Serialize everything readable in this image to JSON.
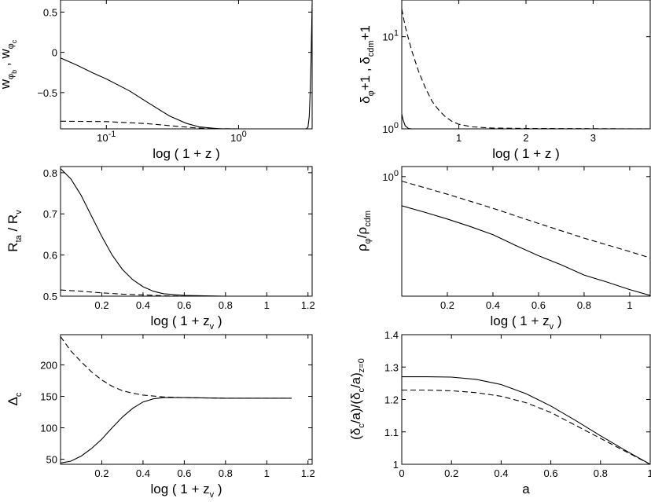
{
  "chart_data": [
    {
      "id": "p1",
      "type": "line",
      "xscale": "log",
      "xlim": [
        0.045,
        3.6
      ],
      "ylim": [
        -0.95,
        0.65
      ],
      "xticks": [
        {
          "v": 0.1,
          "b": "10",
          "e": "-1"
        },
        {
          "v": 1,
          "b": "10",
          "e": "0"
        }
      ],
      "yticks": [
        {
          "v": 0,
          "t": "0"
        },
        {
          "v": 0.5,
          "t": "0.5"
        },
        {
          "v": -0.5,
          "t": "−0.5"
        }
      ],
      "xlabel": "log ( 1 + z )",
      "ylabel": {
        "w1": "w",
        "w1_sub": "φ",
        "w1_subsub": "b",
        "sep": ",",
        "w2": "w",
        "w2_sub": "φ",
        "w2_subsub": "c"
      },
      "series": [
        {
          "style": "solid",
          "points": [
            [
              0.045,
              -0.07
            ],
            [
              0.06,
              -0.16
            ],
            [
              0.08,
              -0.26
            ],
            [
              0.1,
              -0.33
            ],
            [
              0.15,
              -0.48
            ],
            [
              0.2,
              -0.61
            ],
            [
              0.3,
              -0.79
            ],
            [
              0.4,
              -0.88
            ],
            [
              0.5,
              -0.925
            ],
            [
              0.7,
              -0.948
            ],
            [
              1.0,
              -0.95
            ],
            [
              2.0,
              -0.95
            ],
            [
              3.25,
              -0.95
            ],
            [
              3.35,
              -0.93
            ],
            [
              3.42,
              -0.8
            ],
            [
              3.48,
              -0.5
            ],
            [
              3.53,
              -0.1
            ],
            [
              3.57,
              0.3
            ],
            [
              3.6,
              0.6
            ]
          ]
        },
        {
          "style": "dashed",
          "points": [
            [
              0.045,
              -0.855
            ],
            [
              0.1,
              -0.86
            ],
            [
              0.2,
              -0.885
            ],
            [
              0.3,
              -0.91
            ],
            [
              0.45,
              -0.935
            ],
            [
              0.6,
              -0.948
            ],
            [
              1.0,
              -0.95
            ],
            [
              3.6,
              -0.95
            ]
          ]
        }
      ]
    },
    {
      "id": "p2",
      "type": "line",
      "yscale": "log",
      "xlim": [
        0.15,
        3.85
      ],
      "ylim": [
        1,
        25
      ],
      "xticks": [
        {
          "v": 1,
          "t": "1"
        },
        {
          "v": 2,
          "t": "2"
        },
        {
          "v": 3,
          "t": "3"
        }
      ],
      "yticks": [
        {
          "v": 1,
          "b": "10",
          "e": "0"
        },
        {
          "v": 10,
          "b": "10",
          "e": "1"
        }
      ],
      "xlabel": "log ( 1 + z )",
      "ylabel": {
        "a": "δ",
        "a_sub": "φ",
        "b": "+1 , δ",
        "b_sub": "cdm",
        "c": "+1"
      },
      "series": [
        {
          "style": "dashed",
          "points": [
            [
              0.15,
              20
            ],
            [
              0.2,
              13
            ],
            [
              0.3,
              7
            ],
            [
              0.4,
              4.2
            ],
            [
              0.5,
              2.8
            ],
            [
              0.6,
              2.0
            ],
            [
              0.7,
              1.6
            ],
            [
              0.8,
              1.35
            ],
            [
              0.9,
              1.2
            ],
            [
              1.0,
              1.12
            ],
            [
              1.2,
              1.05
            ],
            [
              1.5,
              1.02
            ],
            [
              2.0,
              1.01
            ],
            [
              3.85,
              1.0
            ]
          ]
        },
        {
          "style": "solid",
          "points": [
            [
              0.15,
              1.45
            ],
            [
              0.17,
              1.25
            ],
            [
              0.2,
              1.08
            ],
            [
              0.25,
              1.01
            ],
            [
              0.3,
              1.0
            ],
            [
              3.85,
              1.0
            ]
          ]
        }
      ]
    },
    {
      "id": "p3",
      "type": "line",
      "xlim": [
        0,
        1.22
      ],
      "ylim": [
        0.5,
        0.815
      ],
      "xticks": [
        {
          "v": 0.2,
          "t": "0.2"
        },
        {
          "v": 0.4,
          "t": "0.4"
        },
        {
          "v": 0.6,
          "t": "0.6"
        },
        {
          "v": 0.8,
          "t": "0.8"
        },
        {
          "v": 1,
          "t": "1"
        },
        {
          "v": 1.2,
          "t": "1.2"
        }
      ],
      "yticks": [
        {
          "v": 0.5,
          "t": "0.5"
        },
        {
          "v": 0.6,
          "t": "0.6"
        },
        {
          "v": 0.7,
          "t": "0.7"
        },
        {
          "v": 0.8,
          "t": "0.8"
        }
      ],
      "xlabel": {
        "a": "log ( 1 + z",
        "a_sub": "v",
        "b": ")"
      },
      "ylabel": {
        "a": "R",
        "a_sub": "ta",
        "b": " / R",
        "b_sub": "v"
      },
      "series": [
        {
          "style": "solid",
          "points": [
            [
              0,
              0.81
            ],
            [
              0.05,
              0.785
            ],
            [
              0.1,
              0.745
            ],
            [
              0.15,
              0.695
            ],
            [
              0.2,
              0.645
            ],
            [
              0.25,
              0.6
            ],
            [
              0.3,
              0.565
            ],
            [
              0.35,
              0.54
            ],
            [
              0.4,
              0.523
            ],
            [
              0.45,
              0.512
            ],
            [
              0.5,
              0.506
            ],
            [
              0.6,
              0.502
            ],
            [
              0.8,
              0.5
            ],
            [
              1.12,
              0.5
            ]
          ]
        },
        {
          "style": "dashed",
          "points": [
            [
              0,
              0.515
            ],
            [
              0.1,
              0.512
            ],
            [
              0.2,
              0.508
            ],
            [
              0.3,
              0.505
            ],
            [
              0.4,
              0.503
            ],
            [
              0.5,
              0.501
            ],
            [
              0.6,
              0.5
            ],
            [
              1.12,
              0.5
            ]
          ]
        }
      ]
    },
    {
      "id": "p4",
      "type": "line",
      "yscale": "log",
      "xlim": [
        0,
        1.09
      ],
      "ylim": [
        0.26,
        1.12
      ],
      "xticks": [
        {
          "v": 0.2,
          "t": "0.2"
        },
        {
          "v": 0.4,
          "t": "0.4"
        },
        {
          "v": 0.6,
          "t": "0.6"
        },
        {
          "v": 0.8,
          "t": "0.8"
        },
        {
          "v": 1,
          "t": "1"
        }
      ],
      "yticks": [
        {
          "v": 1,
          "b": "10",
          "e": "0"
        }
      ],
      "xlabel": {
        "a": "log ( 1 + z",
        "a_sub": "v",
        "b": ")"
      },
      "ylabel": {
        "a": "ρ",
        "a_sub": "φ",
        "b": "/ρ",
        "b_sub": "cdm"
      },
      "series": [
        {
          "style": "dashed",
          "points": [
            [
              0,
              0.95
            ],
            [
              0.2,
              0.82
            ],
            [
              0.4,
              0.7
            ],
            [
              0.6,
              0.59
            ],
            [
              0.8,
              0.5
            ],
            [
              1.0,
              0.43
            ],
            [
              1.09,
              0.4
            ]
          ]
        },
        {
          "style": "solid",
          "points": [
            [
              0,
              0.72
            ],
            [
              0.1,
              0.67
            ],
            [
              0.2,
              0.62
            ],
            [
              0.3,
              0.57
            ],
            [
              0.4,
              0.52
            ],
            [
              0.5,
              0.46
            ],
            [
              0.6,
              0.41
            ],
            [
              0.7,
              0.37
            ],
            [
              0.8,
              0.33
            ],
            [
              0.9,
              0.305
            ],
            [
              1.0,
              0.28
            ],
            [
              1.09,
              0.262
            ]
          ]
        }
      ]
    },
    {
      "id": "p5",
      "type": "line",
      "xlim": [
        0,
        1.22
      ],
      "ylim": [
        42,
        248
      ],
      "xticks": [
        {
          "v": 0.2,
          "t": "0.2"
        },
        {
          "v": 0.4,
          "t": "0.4"
        },
        {
          "v": 0.6,
          "t": "0.6"
        },
        {
          "v": 0.8,
          "t": "0.8"
        },
        {
          "v": 1,
          "t": "1"
        },
        {
          "v": 1.2,
          "t": "1.2"
        }
      ],
      "yticks": [
        {
          "v": 50,
          "t": "50"
        },
        {
          "v": 100,
          "t": "100"
        },
        {
          "v": 150,
          "t": "150"
        },
        {
          "v": 200,
          "t": "200"
        }
      ],
      "xlabel": {
        "a": "log ( 1 + z",
        "a_sub": "v",
        "b": ")"
      },
      "ylabel": {
        "a": "Δ",
        "a_sub": "c"
      },
      "series": [
        {
          "style": "dashed",
          "points": [
            [
              0,
              245
            ],
            [
              0.05,
              222
            ],
            [
              0.1,
              205
            ],
            [
              0.15,
              189
            ],
            [
              0.2,
              176
            ],
            [
              0.25,
              166
            ],
            [
              0.3,
              159
            ],
            [
              0.35,
              155
            ],
            [
              0.4,
              152
            ],
            [
              0.5,
              149
            ],
            [
              0.6,
              148
            ],
            [
              0.8,
              147
            ],
            [
              1.12,
              147
            ]
          ]
        },
        {
          "style": "solid",
          "points": [
            [
              0,
              44
            ],
            [
              0.05,
              47
            ],
            [
              0.1,
              55
            ],
            [
              0.15,
              67
            ],
            [
              0.2,
              82
            ],
            [
              0.25,
              100
            ],
            [
              0.3,
              117
            ],
            [
              0.35,
              131
            ],
            [
              0.4,
              141
            ],
            [
              0.45,
              146
            ],
            [
              0.5,
              148
            ],
            [
              0.6,
              148
            ],
            [
              0.8,
              147
            ],
            [
              1.12,
              147
            ]
          ]
        }
      ]
    },
    {
      "id": "p6",
      "type": "line",
      "xlim": [
        0,
        1
      ],
      "ylim": [
        1,
        1.4
      ],
      "xticks": [
        {
          "v": 0,
          "t": "0"
        },
        {
          "v": 0.2,
          "t": "0.2"
        },
        {
          "v": 0.4,
          "t": "0.4"
        },
        {
          "v": 0.6,
          "t": "0.6"
        },
        {
          "v": 0.8,
          "t": "0.8"
        },
        {
          "v": 1,
          "t": "1"
        }
      ],
      "yticks": [
        {
          "v": 1,
          "t": "1"
        },
        {
          "v": 1.1,
          "t": "1.1"
        },
        {
          "v": 1.2,
          "t": "1.2"
        },
        {
          "v": 1.3,
          "t": "1.3"
        },
        {
          "v": 1.4,
          "t": "1.4"
        }
      ],
      "xlabel": "a",
      "ylabel": {
        "a": "(δ",
        "a_sub": "c",
        "b": "/a)/(δ",
        "b_sub": "c",
        "c": "/a)",
        "c_sub": "z=0"
      },
      "series": [
        {
          "style": "solid",
          "points": [
            [
              0,
              1.27
            ],
            [
              0.1,
              1.27
            ],
            [
              0.2,
              1.269
            ],
            [
              0.3,
              1.262
            ],
            [
              0.4,
              1.246
            ],
            [
              0.5,
              1.218
            ],
            [
              0.6,
              1.18
            ],
            [
              0.7,
              1.135
            ],
            [
              0.8,
              1.088
            ],
            [
              0.9,
              1.043
            ],
            [
              1.0,
              1.0
            ]
          ]
        },
        {
          "style": "dashed",
          "points": [
            [
              0,
              1.229
            ],
            [
              0.1,
              1.229
            ],
            [
              0.2,
              1.227
            ],
            [
              0.3,
              1.221
            ],
            [
              0.4,
              1.21
            ],
            [
              0.5,
              1.19
            ],
            [
              0.6,
              1.16
            ],
            [
              0.7,
              1.12
            ],
            [
              0.8,
              1.08
            ],
            [
              0.9,
              1.04
            ],
            [
              1.0,
              1.0
            ]
          ]
        }
      ]
    }
  ]
}
